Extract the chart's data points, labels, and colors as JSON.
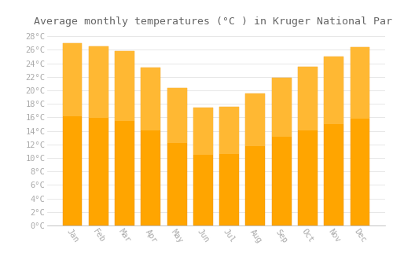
{
  "months": [
    "Jan",
    "Feb",
    "Mar",
    "Apr",
    "May",
    "Jun",
    "Jul",
    "Aug",
    "Sep",
    "Oct",
    "Nov",
    "Dec"
  ],
  "temperatures": [
    27.0,
    26.5,
    25.8,
    23.4,
    20.4,
    17.4,
    17.6,
    19.5,
    21.9,
    23.5,
    25.0,
    26.4
  ],
  "bar_color_top": "#FFB833",
  "bar_color_bottom": "#FFA500",
  "bar_edge_color": "#E89000",
  "background_color": "#FFFFFF",
  "grid_color": "#DDDDDD",
  "title": "Average monthly temperatures (°C ) in Kruger National Park",
  "title_fontsize": 9.5,
  "ylim": [
    0,
    28.5
  ],
  "yticks": [
    0,
    2,
    4,
    6,
    8,
    10,
    12,
    14,
    16,
    18,
    20,
    22,
    24,
    26,
    28
  ],
  "ylabel_suffix": "°C",
  "tick_fontsize": 7.5,
  "tick_font_color": "#AAAAAA",
  "title_font_color": "#666666",
  "xlabel_rotation": -55
}
